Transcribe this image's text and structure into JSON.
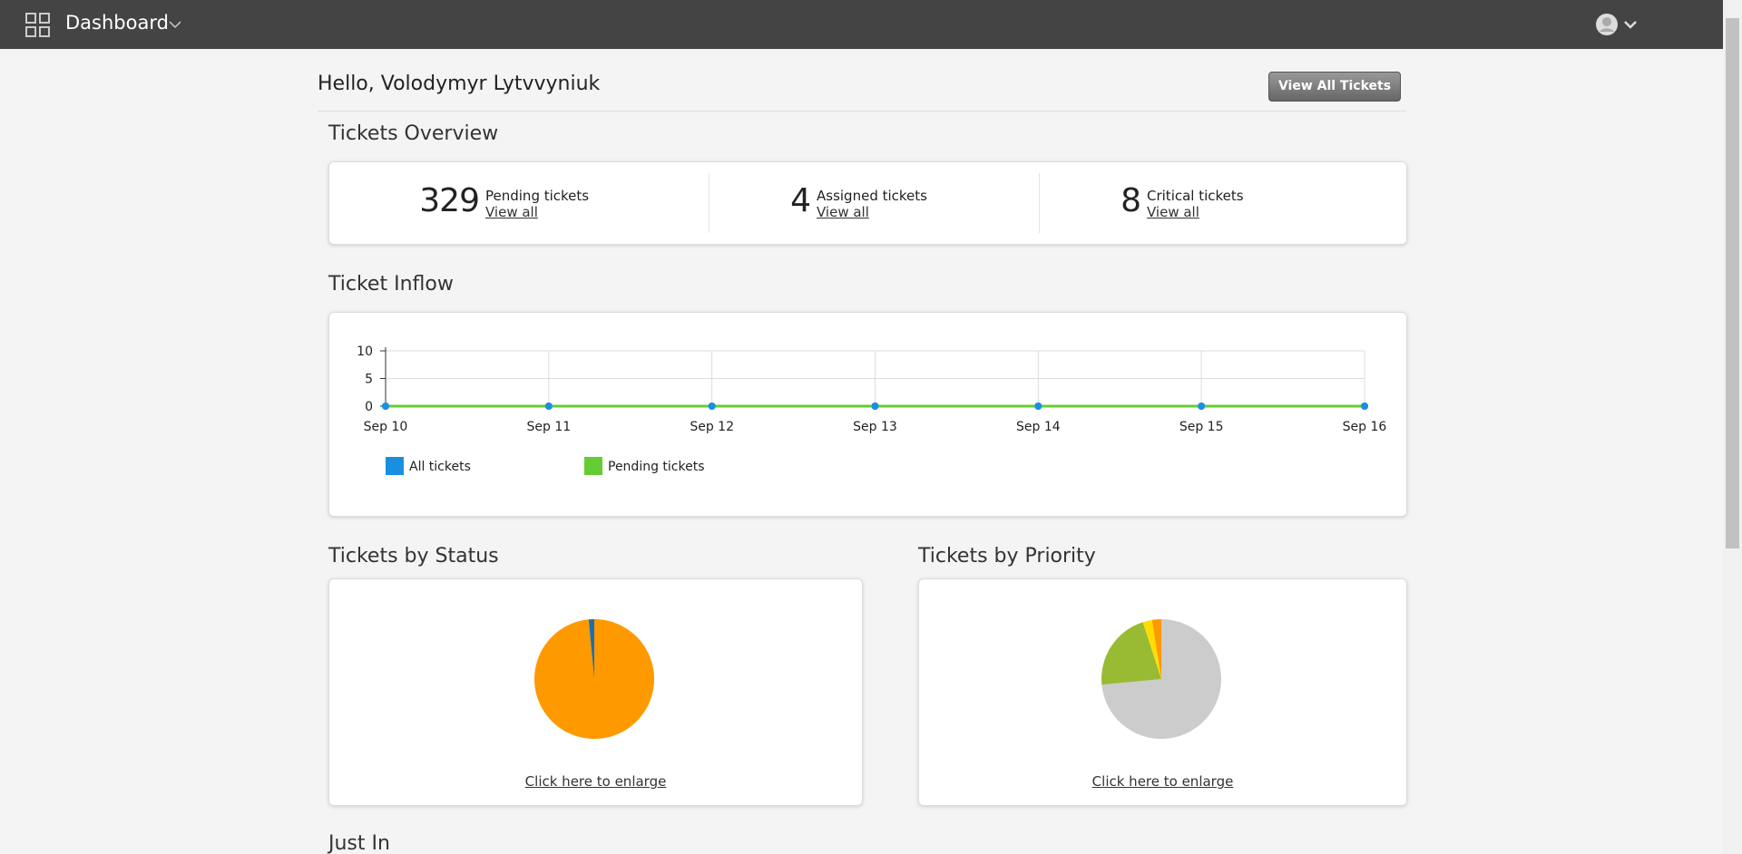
{
  "topbar": {
    "title": "Dashboard"
  },
  "greeting": "Hello, Volodymyr Lytvvyniuk",
  "view_all_button": "View All Tickets",
  "overview": {
    "title": "Tickets Overview",
    "items": [
      {
        "count": 329,
        "label": "Pending tickets",
        "link": "View all"
      },
      {
        "count": 4,
        "label": "Assigned tickets",
        "link": "View all"
      },
      {
        "count": 8,
        "label": "Critical tickets",
        "link": "View all"
      }
    ]
  },
  "inflow": {
    "title": "Ticket Inflow",
    "chart": {
      "type": "line",
      "x": [
        "Sep 10",
        "Sep 11",
        "Sep 12",
        "Sep 13",
        "Sep 14",
        "Sep 15",
        "Sep 16"
      ],
      "series": [
        {
          "name": "All tickets",
          "color": "#1a8fe0",
          "values": [
            0,
            0,
            0,
            0,
            0,
            0,
            0
          ]
        },
        {
          "name": "Pending tickets",
          "color": "#66cc33",
          "values": [
            0,
            0,
            0,
            0,
            0,
            0,
            0
          ]
        }
      ],
      "ylim": [
        0,
        10
      ],
      "yticks": [
        0,
        5,
        10
      ],
      "grid": true
    }
  },
  "status": {
    "title": "Tickets by Status",
    "link": "Click here to enlarge",
    "chart": {
      "type": "pie",
      "values": [
        98.5,
        1.5
      ],
      "colors": [
        "#ff9900",
        "#1a6fb0"
      ]
    }
  },
  "priority": {
    "title": "Tickets by Priority",
    "link": "Click here to enlarge",
    "chart": {
      "type": "pie",
      "values": [
        73.5,
        21.5,
        2.5,
        2.5
      ],
      "colors": [
        "#cccccc",
        "#99bb33",
        "#ffdd00",
        "#ff9900"
      ]
    }
  },
  "just_in": {
    "title": "Just In"
  }
}
